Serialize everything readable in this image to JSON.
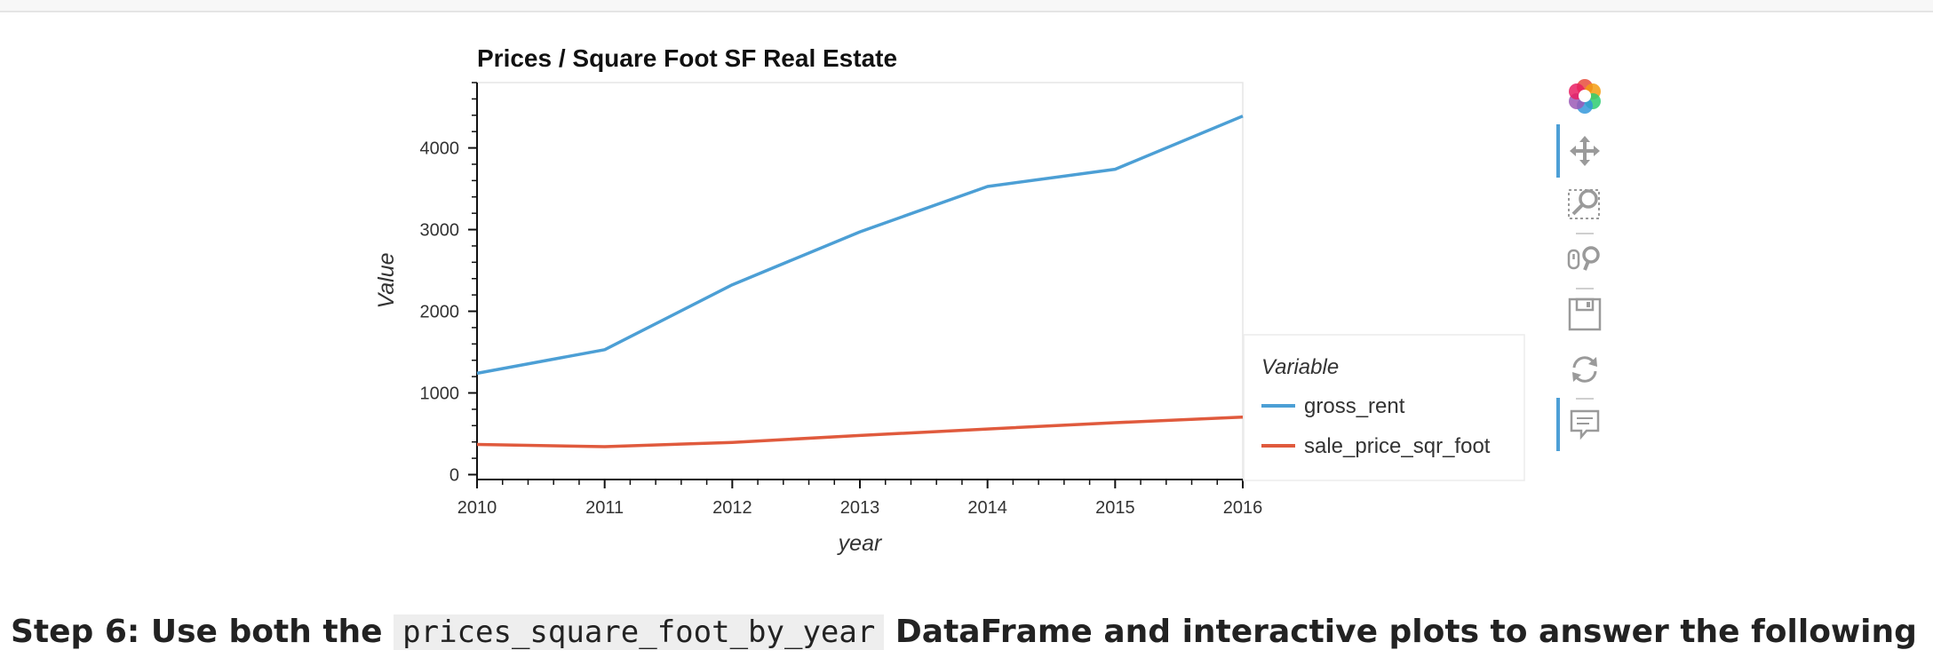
{
  "chart_data": {
    "type": "line",
    "title": "Prices / Square Foot SF Real Estate",
    "xlabel": "year",
    "ylabel": "Value",
    "x": [
      2010,
      2011,
      2012,
      2013,
      2014,
      2015,
      2016
    ],
    "xlim": [
      2010,
      2016
    ],
    "ylim": [
      -60,
      4800
    ],
    "x_ticks": [
      "2010",
      "2011",
      "2012",
      "2013",
      "2014",
      "2015",
      "2016"
    ],
    "y_ticks": [
      "0",
      "1000",
      "2000",
      "3000",
      "4000"
    ],
    "series": [
      {
        "name": "gross_rent",
        "color": "#4c9fd5",
        "values": [
          1240,
          1530,
          2324,
          2972,
          3528,
          3739,
          4390
        ]
      },
      {
        "name": "sale_price_sqr_foot",
        "color": "#e05a3d",
        "values": [
          369,
          342,
          395,
          479,
          559,
          636,
          704
        ]
      }
    ],
    "legend": {
      "title": "Variable",
      "placement": "right"
    },
    "grid": false
  },
  "toolbar": {
    "tools": [
      "bokeh-logo-icon",
      "pan-icon",
      "box-zoom-icon",
      "wheel-zoom-icon",
      "save-icon",
      "reset-icon",
      "hover-icon"
    ]
  },
  "step": {
    "prefix": "Step 6: Use both the",
    "code": "prices_square_foot_by_year",
    "suffix": "DataFrame and interactive plots to answer the following"
  }
}
